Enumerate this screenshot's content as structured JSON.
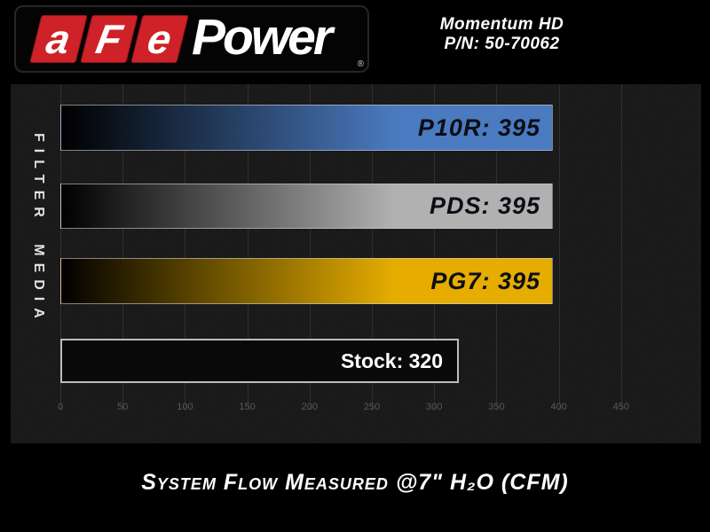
{
  "header": {
    "logo": {
      "letters": [
        "a",
        "F",
        "e"
      ],
      "word": "Power",
      "registered": "®",
      "red": "#cf2128"
    },
    "product": {
      "line1": "Momentum HD",
      "line2": "P/N: 50-70062"
    }
  },
  "chart": {
    "y_axis_label": "FILTER MEDIA",
    "bars": [
      {
        "name": "P10R",
        "label": "P10R: 395",
        "value": 395,
        "color": "#4a7abf",
        "gradient": true
      },
      {
        "name": "PDS",
        "label": "PDS: 395",
        "value": 395,
        "color": "#b1b1b1",
        "gradient": true
      },
      {
        "name": "PG7",
        "label": "PG7: 395",
        "value": 395,
        "color": "#e6ad00",
        "gradient": true
      },
      {
        "name": "Stock",
        "label": "Stock: 320",
        "value": 320,
        "color": "#0a0a0a",
        "gradient": false
      }
    ],
    "title": "System Flow Measured @7\" H₂O (CFM)"
  },
  "chart_data": {
    "type": "bar",
    "orientation": "horizontal",
    "title": "System Flow Measured @7\" H₂O (CFM)",
    "ylabel": "FILTER MEDIA",
    "categories": [
      "P10R",
      "PDS",
      "PG7",
      "Stock"
    ],
    "values": [
      395,
      395,
      395,
      320
    ],
    "bar_colors": [
      "#4a7abf",
      "#b1b1b1",
      "#e6ad00",
      "#000000"
    ],
    "x_ticks": [
      0,
      50,
      100,
      150,
      200,
      250,
      300,
      350,
      400,
      450
    ],
    "xlim": [
      0,
      450
    ],
    "grid": true,
    "legend": "none",
    "background": "#131313"
  }
}
